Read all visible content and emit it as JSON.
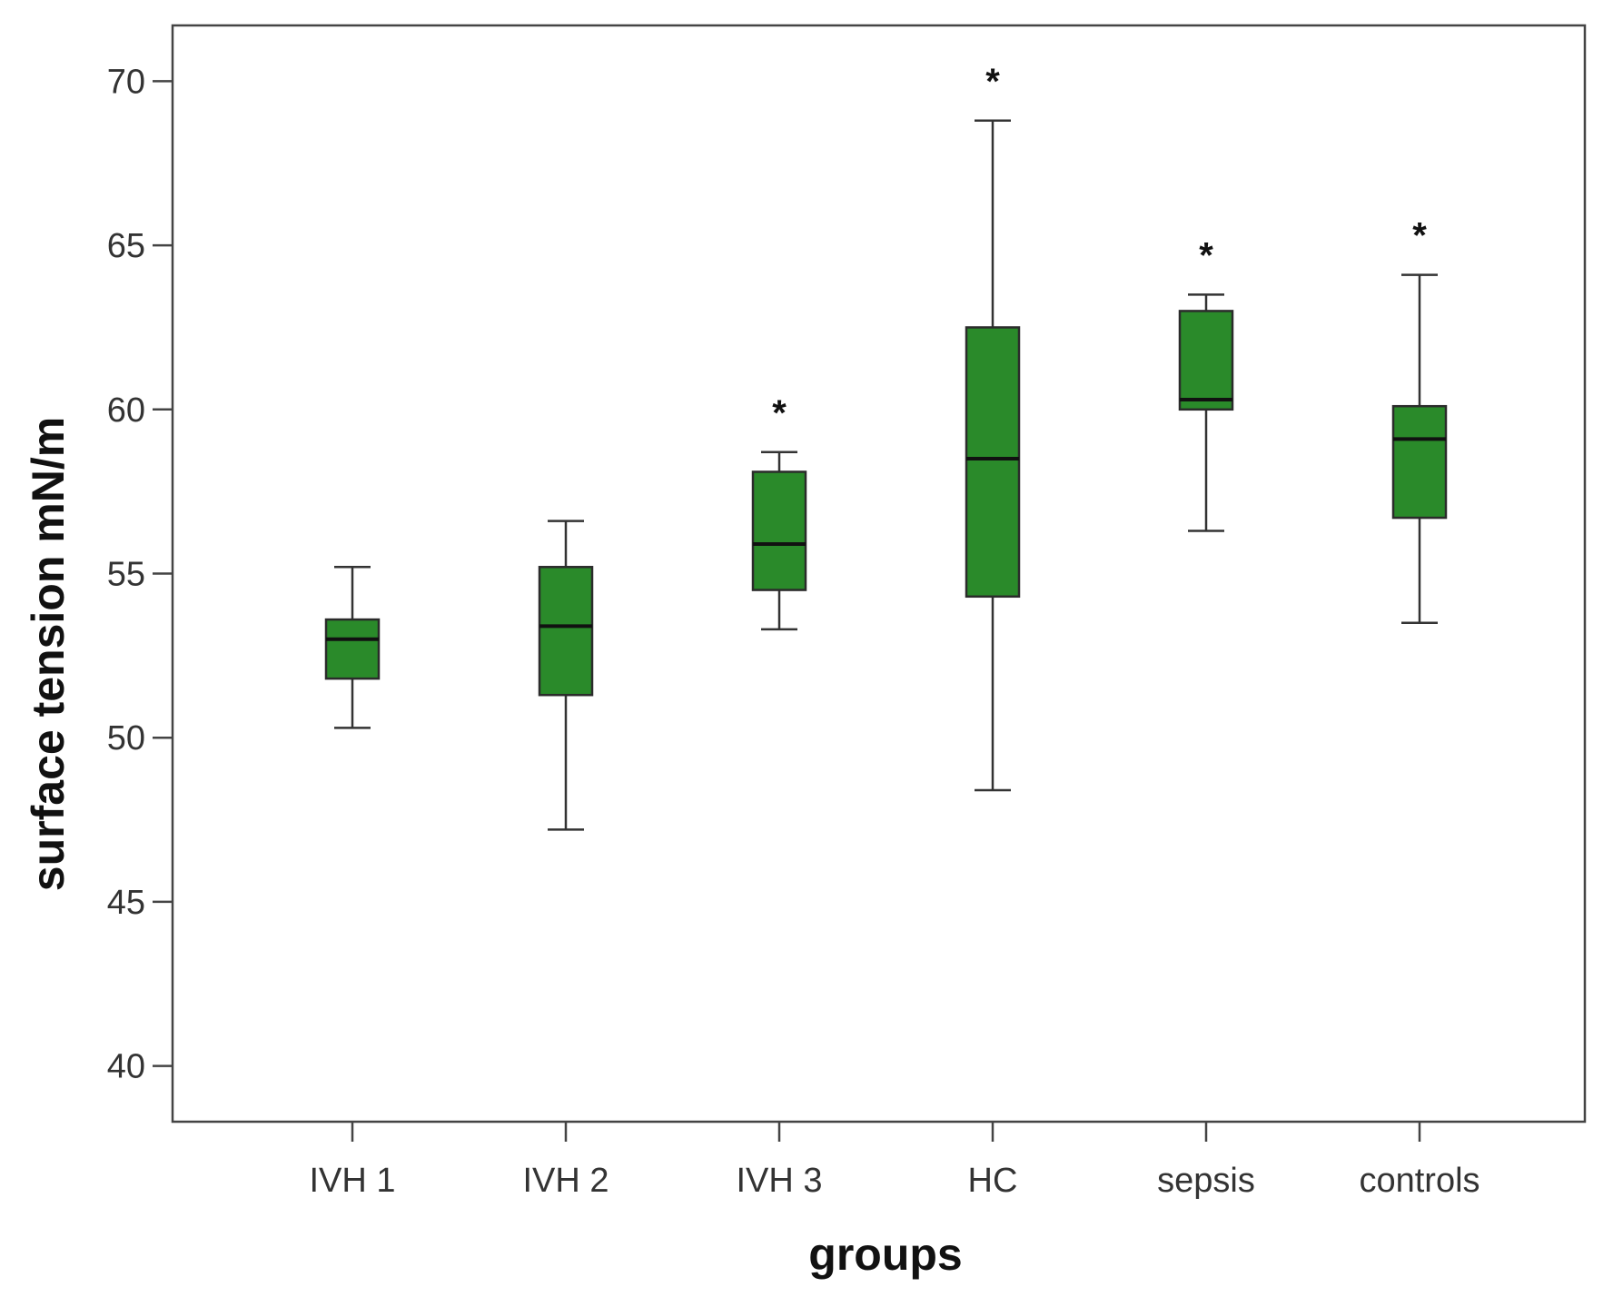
{
  "chart_data": {
    "type": "boxplot",
    "title": "",
    "xlabel": "groups",
    "ylabel": "surface tension mN/m",
    "ylim": [
      38.3,
      71.7
    ],
    "yticks": [
      40,
      45,
      50,
      55,
      60,
      65,
      70
    ],
    "grid": false,
    "box_color": "#2a8a2a",
    "categories": [
      "IVH 1",
      "IVH 2",
      "IVH 3",
      "HC",
      "sepsis",
      "controls"
    ],
    "boxes": [
      {
        "category": "IVH 1",
        "whisker_low": 50.3,
        "q1": 51.8,
        "median": 53.0,
        "q3": 53.6,
        "whisker_high": 55.2,
        "marker": ""
      },
      {
        "category": "IVH 2",
        "whisker_low": 47.2,
        "q1": 51.3,
        "median": 53.4,
        "q3": 55.2,
        "whisker_high": 56.6,
        "marker": ""
      },
      {
        "category": "IVH 3",
        "whisker_low": 53.3,
        "q1": 54.5,
        "median": 55.9,
        "q3": 58.1,
        "whisker_high": 58.7,
        "marker": "*"
      },
      {
        "category": "HC",
        "whisker_low": 48.4,
        "q1": 54.3,
        "median": 58.5,
        "q3": 62.5,
        "whisker_high": 68.8,
        "marker": "*"
      },
      {
        "category": "sepsis",
        "whisker_low": 56.3,
        "q1": 60.0,
        "median": 60.3,
        "q3": 63.0,
        "whisker_high": 63.5,
        "marker": "*"
      },
      {
        "category": "controls",
        "whisker_low": 53.5,
        "q1": 56.7,
        "median": 59.1,
        "q3": 60.1,
        "whisker_high": 64.1,
        "marker": "*"
      }
    ]
  }
}
